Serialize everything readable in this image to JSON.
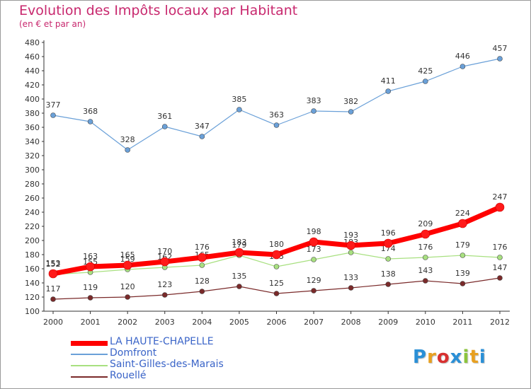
{
  "chart_data": {
    "type": "line",
    "title": "Evolution des Impôts locaux par Habitant",
    "subtitle": "(en € et par an)",
    "categories": [
      "2000",
      "2001",
      "2002",
      "2003",
      "2004",
      "2005",
      "2006",
      "2007",
      "2008",
      "2009",
      "2010",
      "2011",
      "2012"
    ],
    "ylim": [
      100,
      480
    ],
    "yticks": [
      100,
      120,
      140,
      160,
      180,
      200,
      220,
      240,
      260,
      280,
      300,
      320,
      340,
      360,
      380,
      400,
      420,
      440,
      460,
      480
    ],
    "grid": false,
    "legend_position": "bottom-left",
    "series": [
      {
        "name": "LA HAUTE-CHAPELLE",
        "color": "#ff0000",
        "values": [
          153,
          163,
          165,
          170,
          176,
          183,
          180,
          198,
          193,
          196,
          209,
          224,
          247
        ]
      },
      {
        "name": "Domfront",
        "color": "#6aa0d8",
        "values": [
          377,
          368,
          328,
          361,
          347,
          385,
          363,
          383,
          382,
          411,
          425,
          446,
          457
        ]
      },
      {
        "name": "Saint-Gilles-des-Marais",
        "color": "#a8e080",
        "values": [
          152,
          155,
          159,
          162,
          165,
          179,
          163,
          173,
          183,
          174,
          176,
          179,
          176
        ]
      },
      {
        "name": "Rouellé",
        "color": "#7a2a2a",
        "values": [
          117,
          119,
          120,
          123,
          128,
          135,
          125,
          129,
          133,
          138,
          143,
          139,
          147
        ]
      }
    ]
  },
  "logo_text": "Proxiti"
}
